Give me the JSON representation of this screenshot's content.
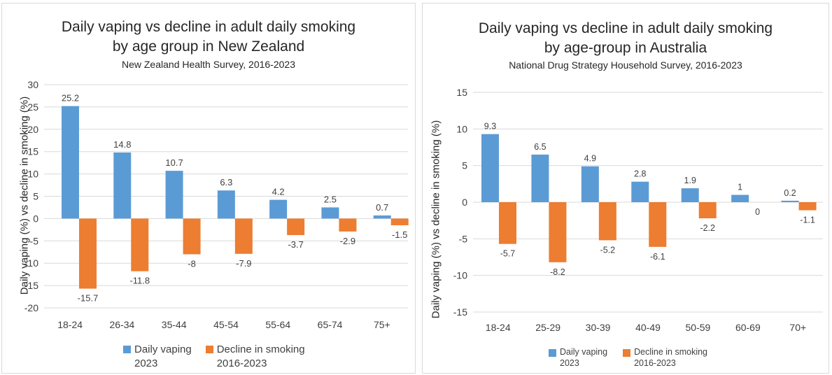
{
  "colors": {
    "vaping": "#5b9bd5",
    "smoking": "#ed7d31",
    "grid": "#d9d9d9",
    "text": "#404040"
  },
  "chart_data": [
    {
      "type": "bar",
      "title": "Daily vaping vs decline in adult daily smoking",
      "title_line2": "by age group in New Zealand",
      "subtitle": "New Zealand Health Survey, 2016-2023",
      "ylabel": "Daily vaping (%) vs decline in smoking (%)",
      "xlabel": "",
      "ylim": [
        -20,
        30
      ],
      "yticks": [
        30,
        25,
        20,
        15,
        10,
        5,
        0,
        -5,
        -10,
        -15,
        -20
      ],
      "grid": true,
      "legend": "bottom",
      "categories": [
        "18-24",
        "26-34",
        "35-44",
        "45-54",
        "55-64",
        "65-74",
        "75+"
      ],
      "series": [
        {
          "name": "Daily vaping",
          "name_line2": "2023",
          "values": [
            25.2,
            14.8,
            10.7,
            6.3,
            4.2,
            2.5,
            0.7
          ]
        },
        {
          "name": "Decline in smoking",
          "name_line2": "2016-2023",
          "values": [
            -15.7,
            -11.8,
            -8,
            -7.9,
            -3.7,
            -2.9,
            -1.5
          ]
        }
      ]
    },
    {
      "type": "bar",
      "title": "Daily vaping vs decline in adult daily smoking",
      "title_line2": "by age-group in Australia",
      "subtitle": "National Drug Strategy Household  Survey, 2016-2023",
      "ylabel": "Daily vaping (%) vs decline in smoking (%)",
      "xlabel": "",
      "ylim": [
        -15,
        15
      ],
      "yticks": [
        15,
        10,
        5,
        0,
        -5,
        -10,
        -15
      ],
      "grid": true,
      "legend": "bottom",
      "categories": [
        "18-24",
        "25-29",
        "30-39",
        "40-49",
        "50-59",
        "60-69",
        "70+"
      ],
      "series": [
        {
          "name": "Daily vaping",
          "name_line2": "2023",
          "values": [
            9.3,
            6.5,
            4.9,
            2.8,
            1.9,
            1,
            0.2
          ]
        },
        {
          "name": "Decline in smoking",
          "name_line2": "2016-2023",
          "values": [
            -5.7,
            -8.2,
            -5.2,
            -6.1,
            -2.2,
            0,
            -1.1
          ]
        }
      ]
    }
  ]
}
